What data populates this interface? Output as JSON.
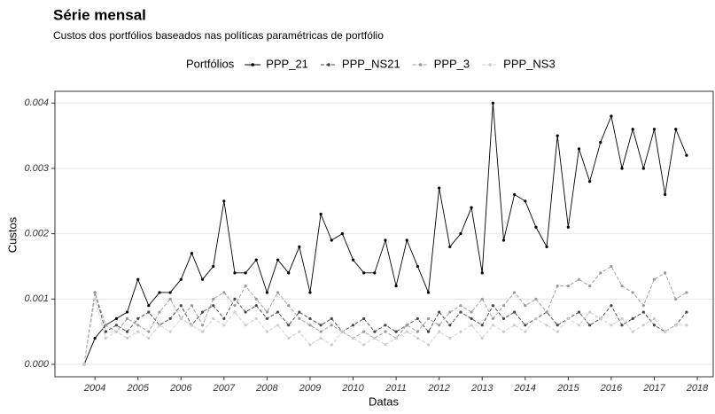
{
  "chart_data": {
    "type": "line",
    "title": "Série mensal",
    "subtitle": "Custos dos portfólios baseados nas políticas paramétricas de portfólio",
    "legend_title": "Portfólios",
    "x_label": "Datas",
    "y_label": "Custos",
    "x": [
      2003.75,
      2004.0,
      2004.25,
      2004.5,
      2004.75,
      2005.0,
      2005.25,
      2005.5,
      2005.75,
      2006.0,
      2006.25,
      2006.5,
      2006.75,
      2007.0,
      2007.25,
      2007.5,
      2007.75,
      2008.0,
      2008.25,
      2008.5,
      2008.75,
      2009.0,
      2009.25,
      2009.5,
      2009.75,
      2010.0,
      2010.25,
      2010.5,
      2010.75,
      2011.0,
      2011.25,
      2011.5,
      2011.75,
      2012.0,
      2012.25,
      2012.5,
      2012.75,
      2013.0,
      2013.25,
      2013.5,
      2013.75,
      2014.0,
      2014.25,
      2014.5,
      2014.75,
      2015.0,
      2015.25,
      2015.5,
      2015.75,
      2016.0,
      2016.25,
      2016.5,
      2016.75,
      2017.0,
      2017.25,
      2017.5,
      2017.75
    ],
    "series": [
      {
        "name": "PPP_21",
        "color": "#000000",
        "linestyle": "solid",
        "values": [
          0,
          0.0004,
          0.0006,
          0.0007,
          0.0008,
          0.0013,
          0.0009,
          0.0011,
          0.0011,
          0.0013,
          0.0017,
          0.0013,
          0.0015,
          0.0025,
          0.0014,
          0.0014,
          0.0016,
          0.0011,
          0.0016,
          0.0014,
          0.0018,
          0.0011,
          0.0023,
          0.0019,
          0.002,
          0.0016,
          0.0014,
          0.0014,
          0.0019,
          0.0012,
          0.0019,
          0.0015,
          0.0011,
          0.0027,
          0.0018,
          0.002,
          0.0024,
          0.0014,
          0.004,
          0.0019,
          0.0026,
          0.0025,
          0.0021,
          0.0018,
          0.0035,
          0.0021,
          0.0033,
          0.0028,
          0.0034,
          0.0038,
          0.003,
          0.0036,
          0.003,
          0.0036,
          0.0026,
          0.0036,
          0.0032
        ]
      },
      {
        "name": "PPP_NS21",
        "color": "#444444",
        "linestyle": "dashed",
        "values": [
          0,
          0.0011,
          0.0005,
          0.0006,
          0.0005,
          0.0007,
          0.0008,
          0.0006,
          0.0007,
          0.0009,
          0.0006,
          0.0008,
          0.0009,
          0.0007,
          0.001,
          0.0008,
          0.0009,
          0.0007,
          0.0008,
          0.0006,
          0.0008,
          0.0007,
          0.0006,
          0.0007,
          0.0005,
          0.0006,
          0.0007,
          0.0005,
          0.0006,
          0.0005,
          0.0006,
          0.0007,
          0.0005,
          0.0008,
          0.0006,
          0.0008,
          0.0007,
          0.0006,
          0.0009,
          0.0007,
          0.0008,
          0.0006,
          0.0007,
          0.0008,
          0.0006,
          0.0007,
          0.0008,
          0.0006,
          0.0007,
          0.0009,
          0.0006,
          0.0007,
          0.0008,
          0.0006,
          0.0005,
          0.0006,
          0.0008
        ]
      },
      {
        "name": "PPP_3",
        "color": "#999999",
        "linestyle": "dashed",
        "values": [
          0,
          0.0011,
          0.0006,
          0.0005,
          0.0007,
          0.0006,
          0.0005,
          0.0008,
          0.001,
          0.0007,
          0.0009,
          0.0006,
          0.001,
          0.0011,
          0.0009,
          0.0012,
          0.001,
          0.0008,
          0.0011,
          0.0009,
          0.0007,
          0.0006,
          0.0005,
          0.0006,
          0.0005,
          0.0004,
          0.0005,
          0.0004,
          0.0005,
          0.0004,
          0.0006,
          0.0005,
          0.0007,
          0.0006,
          0.0008,
          0.0009,
          0.0008,
          0.001,
          0.0007,
          0.0009,
          0.0011,
          0.0009,
          0.001,
          0.0008,
          0.0012,
          0.0012,
          0.0013,
          0.0012,
          0.0014,
          0.0015,
          0.0012,
          0.0011,
          0.0009,
          0.0013,
          0.0014,
          0.001,
          0.0011
        ]
      },
      {
        "name": "PPP_NS3",
        "color": "#cccccc",
        "linestyle": "dashed",
        "values": [
          0,
          0.001,
          0.0004,
          0.0005,
          0.0004,
          0.0005,
          0.0004,
          0.0006,
          0.0005,
          0.0007,
          0.0006,
          0.0005,
          0.0007,
          0.0006,
          0.0008,
          0.0006,
          0.0007,
          0.0005,
          0.0006,
          0.0004,
          0.0005,
          0.0003,
          0.0004,
          0.0003,
          0.0005,
          0.0004,
          0.0003,
          0.0004,
          0.0003,
          0.0004,
          0.0005,
          0.0004,
          0.0003,
          0.0005,
          0.0004,
          0.0005,
          0.0006,
          0.0004,
          0.0006,
          0.0005,
          0.0006,
          0.0005,
          0.0007,
          0.0006,
          0.0005,
          0.0007,
          0.0006,
          0.0008,
          0.0007,
          0.0006,
          0.0007,
          0.0005,
          0.0006,
          0.0007,
          0.0005,
          0.0006,
          0.0006
        ]
      }
    ],
    "xlim": [
      2003.07,
      2018.37
    ],
    "xticks": [
      2004,
      2005,
      2006,
      2007,
      2008,
      2009,
      2010,
      2011,
      2012,
      2013,
      2014,
      2015,
      2016,
      2017,
      2018
    ],
    "ylim": [
      -0.00019,
      0.00418
    ],
    "yticks": [
      {
        "value": 0,
        "label": "0.000"
      },
      {
        "value": 0.001,
        "label": "0.001"
      },
      {
        "value": 0.002,
        "label": "0.002"
      },
      {
        "value": 0.003,
        "label": "0.003"
      },
      {
        "value": 0.004,
        "label": "0.004"
      }
    ],
    "grid": true
  }
}
